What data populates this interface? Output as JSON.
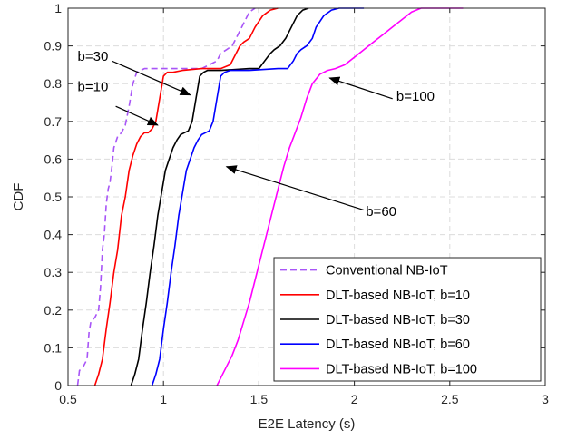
{
  "chart_data": {
    "type": "line",
    "title": "",
    "xlabel": "E2E Latency (s)",
    "ylabel": "CDF",
    "xlim": [
      0.5,
      3
    ],
    "ylim": [
      0,
      1
    ],
    "xticks": [
      0.5,
      1,
      1.5,
      2,
      2.5,
      3
    ],
    "xtick_labels": [
      "0.5",
      "1",
      "1.5",
      "2",
      "2.5",
      "3"
    ],
    "yticks": [
      0,
      0.1,
      0.2,
      0.3,
      0.4,
      0.5,
      0.6,
      0.7,
      0.8,
      0.9,
      1
    ],
    "ytick_labels": [
      "0",
      "0.1",
      "0.2",
      "0.3",
      "0.4",
      "0.5",
      "0.6",
      "0.7",
      "0.8",
      "0.9",
      "1"
    ],
    "grid": true,
    "legend_position": "bottom-right",
    "series": [
      {
        "name": "Conventional NB-IoT",
        "color": "#a855f7",
        "dash": "dashed",
        "x": [
          0.55,
          0.56,
          0.58,
          0.6,
          0.61,
          0.62,
          0.64,
          0.66,
          0.67,
          0.68,
          0.69,
          0.7,
          0.71,
          0.72,
          0.73,
          0.74,
          0.76,
          0.78,
          0.8,
          0.82,
          0.84,
          0.86,
          0.88,
          0.9,
          0.95,
          1.05,
          1.2,
          1.28,
          1.3,
          1.33,
          1.36,
          1.39,
          1.42,
          1.45,
          1.48
        ],
        "y": [
          0.0,
          0.04,
          0.05,
          0.07,
          0.14,
          0.17,
          0.18,
          0.2,
          0.26,
          0.36,
          0.4,
          0.48,
          0.52,
          0.54,
          0.58,
          0.63,
          0.66,
          0.67,
          0.69,
          0.74,
          0.8,
          0.83,
          0.835,
          0.84,
          0.84,
          0.84,
          0.84,
          0.86,
          0.88,
          0.89,
          0.9,
          0.93,
          0.96,
          0.99,
          1.0
        ]
      },
      {
        "name": "DLT-based NB-IoT, b=10",
        "color": "#ff0000",
        "dash": "solid",
        "x": [
          0.64,
          0.66,
          0.68,
          0.7,
          0.72,
          0.74,
          0.76,
          0.78,
          0.8,
          0.82,
          0.84,
          0.86,
          0.88,
          0.9,
          0.92,
          0.94,
          0.96,
          0.98,
          1.0,
          1.02,
          1.05,
          1.1,
          1.2,
          1.3,
          1.35,
          1.38,
          1.4,
          1.42,
          1.45,
          1.48,
          1.52,
          1.56,
          1.6
        ],
        "y": [
          0.0,
          0.03,
          0.07,
          0.15,
          0.22,
          0.3,
          0.36,
          0.45,
          0.5,
          0.57,
          0.61,
          0.64,
          0.66,
          0.67,
          0.67,
          0.68,
          0.7,
          0.76,
          0.82,
          0.83,
          0.83,
          0.835,
          0.84,
          0.84,
          0.85,
          0.88,
          0.9,
          0.91,
          0.92,
          0.95,
          0.98,
          0.995,
          1.0
        ]
      },
      {
        "name": "DLT-based NB-IoT, b=30",
        "color": "#000000",
        "dash": "solid",
        "x": [
          0.83,
          0.85,
          0.87,
          0.89,
          0.91,
          0.93,
          0.95,
          0.97,
          0.99,
          1.01,
          1.03,
          1.05,
          1.07,
          1.09,
          1.11,
          1.13,
          1.15,
          1.17,
          1.19,
          1.21,
          1.23,
          1.3,
          1.45,
          1.5,
          1.53,
          1.56,
          1.58,
          1.61,
          1.64,
          1.67,
          1.7,
          1.73,
          1.76
        ],
        "y": [
          0.0,
          0.03,
          0.07,
          0.15,
          0.22,
          0.3,
          0.37,
          0.45,
          0.51,
          0.57,
          0.6,
          0.63,
          0.65,
          0.665,
          0.67,
          0.675,
          0.7,
          0.76,
          0.82,
          0.83,
          0.835,
          0.835,
          0.84,
          0.84,
          0.86,
          0.88,
          0.89,
          0.9,
          0.92,
          0.95,
          0.98,
          0.995,
          1.0
        ]
      },
      {
        "name": "DLT-based NB-IoT, b=60",
        "color": "#0000ff",
        "dash": "solid",
        "x": [
          0.94,
          0.96,
          0.98,
          1.0,
          1.02,
          1.04,
          1.06,
          1.08,
          1.1,
          1.12,
          1.14,
          1.16,
          1.18,
          1.2,
          1.22,
          1.24,
          1.26,
          1.28,
          1.3,
          1.32,
          1.35,
          1.45,
          1.6,
          1.65,
          1.68,
          1.7,
          1.72,
          1.75,
          1.78,
          1.8,
          1.84,
          1.88,
          1.92,
          2.05
        ],
        "y": [
          0.0,
          0.03,
          0.07,
          0.15,
          0.22,
          0.3,
          0.37,
          0.45,
          0.51,
          0.57,
          0.6,
          0.63,
          0.65,
          0.665,
          0.67,
          0.675,
          0.7,
          0.76,
          0.82,
          0.83,
          0.835,
          0.835,
          0.84,
          0.84,
          0.86,
          0.88,
          0.89,
          0.9,
          0.92,
          0.95,
          0.98,
          0.995,
          1.0,
          1.0
        ]
      },
      {
        "name": "DLT-based NB-IoT, b=100",
        "color": "#ff00ff",
        "dash": "solid",
        "x": [
          1.28,
          1.3,
          1.33,
          1.36,
          1.39,
          1.42,
          1.45,
          1.48,
          1.51,
          1.54,
          1.57,
          1.6,
          1.63,
          1.66,
          1.69,
          1.72,
          1.75,
          1.78,
          1.82,
          1.86,
          1.9,
          1.95,
          2.0,
          2.05,
          2.1,
          2.15,
          2.2,
          2.25,
          2.3,
          2.35,
          2.45,
          2.57
        ],
        "y": [
          0.0,
          0.02,
          0.05,
          0.08,
          0.12,
          0.17,
          0.22,
          0.28,
          0.34,
          0.4,
          0.46,
          0.52,
          0.58,
          0.63,
          0.67,
          0.71,
          0.76,
          0.8,
          0.825,
          0.835,
          0.84,
          0.85,
          0.87,
          0.89,
          0.91,
          0.93,
          0.95,
          0.97,
          0.99,
          1.0,
          1.0,
          1.0
        ]
      }
    ],
    "annotations": [
      {
        "text": "b=30",
        "text_x": 0.55,
        "text_y": 0.86,
        "arrow_from": [
          0.73,
          0.86
        ],
        "arrow_to": [
          1.14,
          0.77
        ]
      },
      {
        "text": "b=10",
        "text_x": 0.55,
        "text_y": 0.78,
        "arrow_from": [
          0.75,
          0.74
        ],
        "arrow_to": [
          0.97,
          0.69
        ]
      },
      {
        "text": "b=100",
        "text_x": 2.22,
        "text_y": 0.755,
        "arrow_from": [
          2.2,
          0.76
        ],
        "arrow_to": [
          1.87,
          0.815
        ]
      },
      {
        "text": "b=60",
        "text_x": 2.06,
        "text_y": 0.45,
        "arrow_from": [
          2.05,
          0.465
        ],
        "arrow_to": [
          1.33,
          0.58
        ]
      }
    ]
  }
}
